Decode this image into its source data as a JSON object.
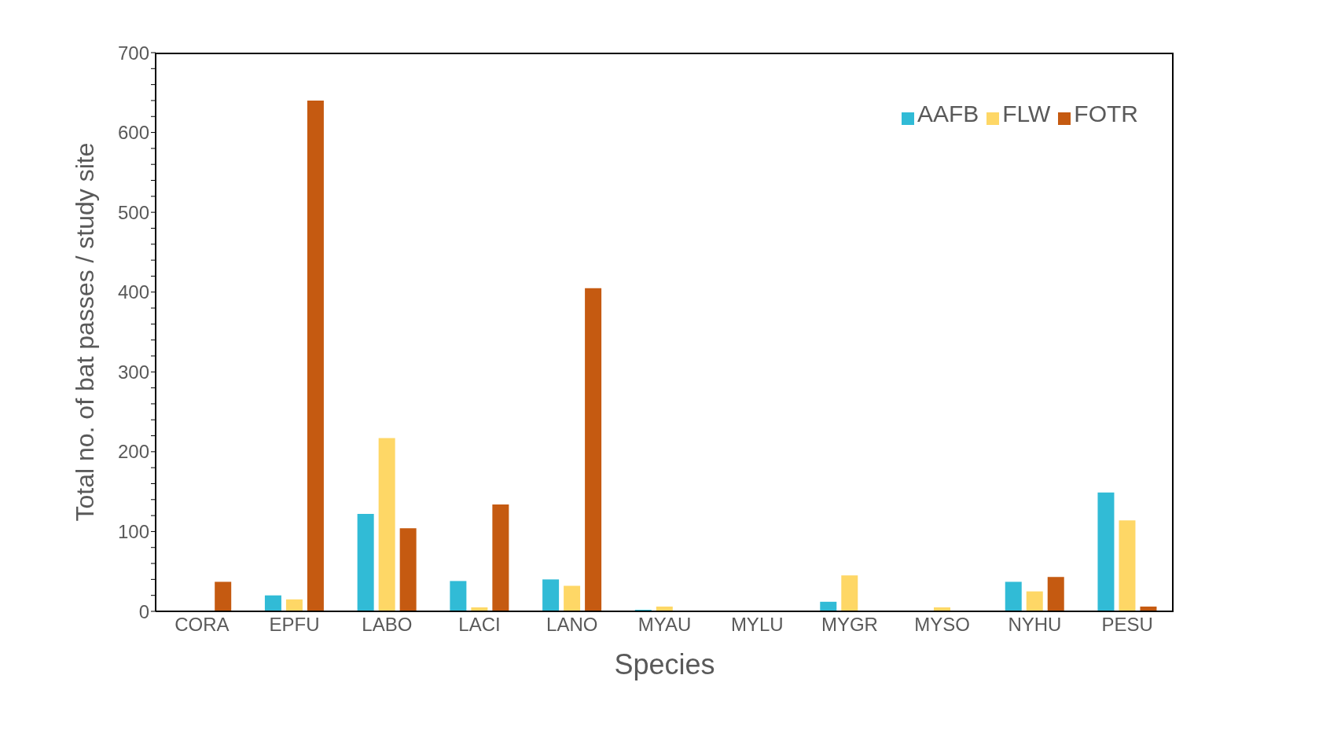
{
  "chart_data": {
    "type": "bar",
    "xlabel": "Species",
    "ylabel": "Total no. of bat passes / study site",
    "categories": [
      "CORA",
      "EPFU",
      "LABO",
      "LACI",
      "LANO",
      "MYAU",
      "MYLU",
      "MYGR",
      "MYSO",
      "NYHU",
      "PESU"
    ],
    "series": [
      {
        "name": "AAFB",
        "color": "#31bbd6",
        "values": [
          0,
          20,
          122,
          38,
          40,
          2,
          0,
          12,
          0,
          37,
          149
        ]
      },
      {
        "name": "FLW",
        "color": "#fed766",
        "values": [
          0,
          15,
          217,
          5,
          32,
          6,
          0,
          45,
          5,
          25,
          114
        ]
      },
      {
        "name": "FOTR",
        "color": "#c55a11",
        "values": [
          37,
          640,
          104,
          134,
          405,
          0,
          0,
          0,
          0,
          43,
          6
        ]
      }
    ],
    "ylim": [
      0,
      700
    ],
    "yticks": [
      0,
      {
        "value": 20,
        "label": null
      },
      {
        "value": 40,
        "label": null
      },
      {
        "value": 60,
        "label": null
      },
      {
        "value": 80,
        "label": null
      },
      100,
      {
        "value": 120,
        "label": null
      },
      {
        "value": 140,
        "label": null
      },
      {
        "value": 160,
        "label": null
      },
      {
        "value": 180,
        "label": null
      },
      200,
      {
        "value": 220,
        "label": null
      },
      {
        "value": 240,
        "label": null
      },
      {
        "value": 260,
        "label": null
      },
      {
        "value": 280,
        "label": null
      },
      300,
      {
        "value": 320,
        "label": null
      },
      {
        "value": 340,
        "label": null
      },
      {
        "value": 360,
        "label": null
      },
      {
        "value": 380,
        "label": null
      },
      400,
      {
        "value": 420,
        "label": null
      },
      {
        "value": 440,
        "label": null
      },
      {
        "value": 460,
        "label": null
      },
      {
        "value": 480,
        "label": null
      },
      500,
      {
        "value": 520,
        "label": null
      },
      {
        "value": 540,
        "label": null
      },
      {
        "value": 560,
        "label": null
      },
      {
        "value": 580,
        "label": null
      },
      600,
      {
        "value": 620,
        "label": null
      },
      {
        "value": 640,
        "label": null
      },
      {
        "value": 660,
        "label": null
      },
      {
        "value": 680,
        "label": null
      },
      700
    ],
    "grid": false,
    "legend": "top right"
  }
}
